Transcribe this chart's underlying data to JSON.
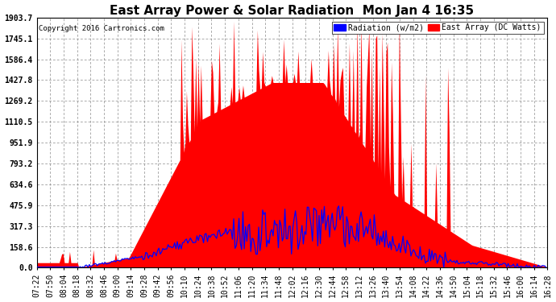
{
  "title": "East Array Power & Solar Radiation  Mon Jan 4 16:35",
  "copyright": "Copyright 2016 Cartronics.com",
  "legend_radiation": "Radiation (w/m2)",
  "legend_east_array": "East Array (DC Watts)",
  "ymax": 1903.7,
  "yticks": [
    0.0,
    158.6,
    317.3,
    475.9,
    634.6,
    793.2,
    951.9,
    1110.5,
    1269.2,
    1427.8,
    1586.4,
    1745.1,
    1903.7
  ],
  "background_color": "#ffffff",
  "plot_bg_color": "#ffffff",
  "grid_color": "#aaaaaa",
  "radiation_color": "#0000ff",
  "east_array_color": "#ff0000",
  "title_fontsize": 11,
  "tick_fontsize": 7,
  "xtick_labels": [
    "07:22",
    "07:50",
    "08:04",
    "08:18",
    "08:32",
    "08:46",
    "09:00",
    "09:14",
    "09:28",
    "09:42",
    "09:56",
    "10:10",
    "10:24",
    "10:38",
    "10:52",
    "11:06",
    "11:20",
    "11:34",
    "11:48",
    "12:02",
    "12:16",
    "12:30",
    "12:44",
    "12:58",
    "13:12",
    "13:26",
    "13:40",
    "13:54",
    "14:08",
    "14:22",
    "14:36",
    "14:50",
    "15:04",
    "15:18",
    "15:32",
    "15:46",
    "16:00",
    "16:14",
    "16:28"
  ],
  "num_points": 390
}
